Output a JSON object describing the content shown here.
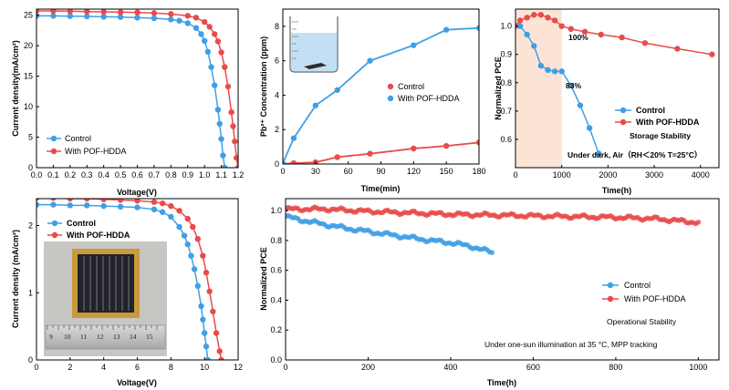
{
  "colors": {
    "control": "#3f9fe6",
    "pof": "#e84b4b",
    "shade": "#fbe4d6"
  },
  "panel_a": {
    "xlabel": "Voltage(V)",
    "ylabel": "Current density(mA/cm²)",
    "legend": [
      "Control",
      "With POF-HDDA"
    ]
  },
  "panel_b": {
    "xlabel": "Time(min)",
    "ylabel": "Pb²⁺ Concentration (ppm)",
    "legend": [
      "Control",
      "With POF-HDDA"
    ]
  },
  "panel_c": {
    "xlabel": "Time(h)",
    "ylabel": "Normalized PCE",
    "legend": [
      "Control",
      "With POF-HDDA"
    ],
    "label_100": "100%",
    "label_83": "83%",
    "note1": "Storage Stability",
    "note2": "Under dark, Air（RH＜20% T=25°C）"
  },
  "panel_d": {
    "xlabel": "Voltage(V)",
    "ylabel": "Current density (mA/cm²)",
    "legend": [
      "Control",
      "With POF-HDDA"
    ],
    "ruler_numbers": [
      "9",
      "10",
      "11",
      "12",
      "13",
      "14",
      "15"
    ]
  },
  "panel_e": {
    "xlabel": "Time(h)",
    "ylabel": "Normalized PCE",
    "legend": [
      "Control",
      "With POF-HDDA"
    ],
    "note1": "Operational Stability",
    "note2": "Under one-sun illumination at 35 °C, MPP tracking"
  },
  "chart_data": [
    {
      "type": "line",
      "xlabel": "Voltage(V)",
      "ylabel": "Current density(mA/cm²)",
      "xlim": [
        0,
        1.2
      ],
      "ylim": [
        0,
        26
      ],
      "xticks": [
        "0.0",
        "0.1",
        "0.2",
        "0.3",
        "0.4",
        "0.5",
        "0.6",
        "0.7",
        "0.8",
        "0.9",
        "1.0",
        "1.1",
        "1.2"
      ],
      "yticks": [
        "0",
        "5",
        "10",
        "15",
        "20",
        "25"
      ],
      "series": [
        {
          "name": "Control",
          "x": [
            0,
            0.1,
            0.2,
            0.3,
            0.4,
            0.5,
            0.6,
            0.7,
            0.8,
            0.85,
            0.9,
            0.95,
            0.98,
            1.0,
            1.02,
            1.04,
            1.06,
            1.08,
            1.09,
            1.1,
            1.11,
            1.12
          ],
          "y": [
            24.9,
            24.9,
            24.85,
            24.8,
            24.75,
            24.7,
            24.6,
            24.5,
            24.3,
            24.1,
            23.7,
            22.9,
            21.9,
            20.8,
            19.0,
            16.5,
            13.5,
            9.5,
            7.2,
            4.7,
            2.0,
            0
          ]
        },
        {
          "name": "With POF-HDDA",
          "x": [
            0,
            0.1,
            0.2,
            0.3,
            0.4,
            0.5,
            0.6,
            0.7,
            0.8,
            0.9,
            0.95,
            1.0,
            1.03,
            1.06,
            1.08,
            1.1,
            1.12,
            1.14,
            1.16,
            1.17,
            1.18,
            1.19,
            1.2
          ],
          "y": [
            25.7,
            25.7,
            25.65,
            25.6,
            25.55,
            25.5,
            25.45,
            25.35,
            25.2,
            24.9,
            24.6,
            23.9,
            23.1,
            21.9,
            20.7,
            18.9,
            16.5,
            13.3,
            9.1,
            6.8,
            4.3,
            1.6,
            0
          ]
        }
      ]
    },
    {
      "type": "scatter",
      "xlabel": "Time(min)",
      "ylabel": "Pb²⁺ Concentration (ppm)",
      "xlim": [
        0,
        180
      ],
      "ylim": [
        0,
        9
      ],
      "xticks": [
        "0",
        "30",
        "60",
        "90",
        "120",
        "150",
        "180"
      ],
      "yticks": [
        "0",
        "2",
        "4",
        "6",
        "8"
      ],
      "series": [
        {
          "name": "Control",
          "x": [
            0,
            10,
            30,
            50,
            80,
            120,
            150,
            180
          ],
          "y": [
            0,
            0.05,
            0.1,
            0.4,
            0.6,
            0.9,
            1.05,
            1.25
          ]
        },
        {
          "name": "With POF-HDDA",
          "x": [
            0,
            10,
            30,
            50,
            80,
            120,
            150,
            180
          ],
          "y": [
            0.05,
            1.5,
            3.4,
            4.3,
            6.0,
            6.9,
            7.8,
            7.9
          ]
        }
      ]
    },
    {
      "type": "line",
      "xlabel": "Time(h)",
      "ylabel": "Normalized PCE",
      "xlim": [
        0,
        4400
      ],
      "ylim": [
        0.5,
        1.06
      ],
      "xticks": [
        "0",
        "1000",
        "2000",
        "3000",
        "4000"
      ],
      "yticks": [
        "0.6",
        "0.7",
        "0.8",
        "0.9",
        "1.0"
      ],
      "shaded_x": [
        0,
        1000
      ],
      "series": [
        {
          "name": "Control",
          "x": [
            0,
            100,
            250,
            400,
            550,
            700,
            850,
            1000,
            1200,
            1400,
            1600,
            1800
          ],
          "y": [
            1.0,
            1.0,
            0.97,
            0.93,
            0.86,
            0.845,
            0.84,
            0.84,
            0.79,
            0.72,
            0.64,
            0.55
          ]
        },
        {
          "name": "With POF-HDDA",
          "x": [
            0,
            100,
            250,
            400,
            550,
            700,
            850,
            1000,
            1200,
            1500,
            1850,
            2300,
            2800,
            3500,
            4250
          ],
          "y": [
            1.0,
            1.02,
            1.03,
            1.04,
            1.04,
            1.03,
            1.02,
            1.0,
            0.99,
            0.98,
            0.97,
            0.96,
            0.94,
            0.92,
            0.9
          ]
        }
      ]
    },
    {
      "type": "line",
      "xlabel": "Voltage(V)",
      "ylabel": "Current density (mA/cm²)",
      "xlim": [
        0,
        12
      ],
      "ylim": [
        0,
        2.4
      ],
      "xticks": [
        "0",
        "2",
        "4",
        "6",
        "8",
        "10",
        "12"
      ],
      "yticks": [
        "0",
        "1",
        "2"
      ],
      "series": [
        {
          "name": "Control",
          "x": [
            0,
            1,
            2,
            3,
            4,
            5,
            6,
            7,
            7.5,
            8,
            8.5,
            8.8,
            9.0,
            9.2,
            9.4,
            9.6,
            9.8,
            9.9,
            10.0,
            10.1,
            10.2
          ],
          "y": [
            2.31,
            2.31,
            2.3,
            2.3,
            2.29,
            2.28,
            2.27,
            2.24,
            2.2,
            2.13,
            1.98,
            1.85,
            1.72,
            1.55,
            1.35,
            1.1,
            0.8,
            0.6,
            0.4,
            0.2,
            0
          ]
        },
        {
          "name": "With POF-HDDA",
          "x": [
            0,
            1,
            2,
            3,
            4,
            5,
            6,
            7,
            7.5,
            8,
            8.5,
            9,
            9.3,
            9.6,
            9.9,
            10.1,
            10.3,
            10.5,
            10.7,
            10.9,
            11.0
          ],
          "y": [
            2.41,
            2.41,
            2.4,
            2.4,
            2.39,
            2.38,
            2.37,
            2.35,
            2.33,
            2.29,
            2.22,
            2.1,
            1.98,
            1.8,
            1.55,
            1.3,
            1.02,
            0.72,
            0.4,
            0.13,
            0
          ]
        }
      ]
    },
    {
      "type": "line",
      "xlabel": "Time(h)",
      "ylabel": "Normalized PCE",
      "xlim": [
        0,
        1050
      ],
      "ylim": [
        0,
        1.08
      ],
      "xticks": [
        "0",
        "200",
        "400",
        "600",
        "800",
        "1000"
      ],
      "yticks": [
        "0.0",
        "0.2",
        "0.4",
        "0.6",
        "0.8",
        "1.0"
      ],
      "series": [
        {
          "name": "Control",
          "x": [
            0,
            50,
            100,
            150,
            200,
            250,
            300,
            350,
            400,
            450,
            500
          ],
          "y": [
            0.96,
            0.93,
            0.905,
            0.88,
            0.86,
            0.84,
            0.82,
            0.8,
            0.785,
            0.76,
            0.72
          ]
        },
        {
          "name": "With POF-HDDA",
          "x": [
            0,
            100,
            200,
            300,
            400,
            500,
            600,
            700,
            800,
            900,
            1000
          ],
          "y": [
            1.01,
            1.01,
            0.995,
            0.985,
            0.975,
            0.97,
            0.965,
            0.96,
            0.955,
            0.945,
            0.92
          ]
        }
      ]
    }
  ]
}
